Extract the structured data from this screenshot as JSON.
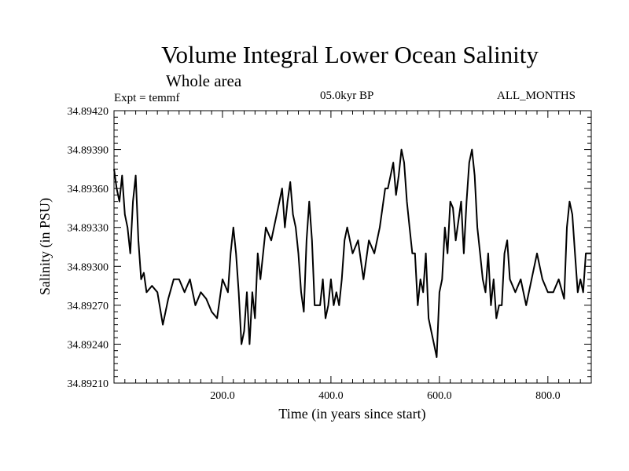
{
  "header": {
    "title": "Volume Integral Lower Ocean Salinity",
    "subtitle": "Whole area",
    "expt_label": "Expt = temmf",
    "period_label": "05.0kyr BP",
    "months_label": "ALL_MONTHS"
  },
  "chart_data": {
    "type": "line",
    "title": "Volume Integral Lower Ocean Salinity",
    "subtitle": "Whole area",
    "xlabel": "Time (in years since start)",
    "ylabel": "Salinity (in PSU)",
    "xlim": [
      0,
      880
    ],
    "ylim": [
      34.8921,
      34.8942
    ],
    "x_ticks": [
      200,
      400,
      600,
      800
    ],
    "x_tick_labels": [
      "200.0",
      "400.0",
      "600.0",
      "800.0"
    ],
    "y_ticks": [
      34.8921,
      34.8924,
      34.8927,
      34.893,
      34.8933,
      34.8936,
      34.8939,
      34.8942
    ],
    "y_tick_labels": [
      "34.89210",
      "34.89240",
      "34.89270",
      "34.89300",
      "34.89330",
      "34.89360",
      "34.89390",
      "34.89420"
    ],
    "grid": false,
    "series": [
      {
        "name": "Salinity",
        "color": "#000000",
        "x": [
          0,
          5,
          10,
          15,
          20,
          25,
          30,
          35,
          40,
          45,
          50,
          55,
          60,
          70,
          80,
          90,
          100,
          110,
          120,
          130,
          140,
          150,
          160,
          170,
          180,
          190,
          200,
          210,
          215,
          220,
          225,
          230,
          235,
          240,
          245,
          250,
          255,
          260,
          265,
          270,
          280,
          290,
          300,
          305,
          310,
          315,
          320,
          325,
          330,
          335,
          340,
          345,
          350,
          355,
          360,
          365,
          370,
          380,
          385,
          390,
          395,
          400,
          405,
          410,
          415,
          420,
          425,
          430,
          440,
          450,
          460,
          470,
          480,
          490,
          500,
          505,
          510,
          515,
          520,
          525,
          530,
          535,
          540,
          545,
          550,
          555,
          560,
          565,
          570,
          575,
          580,
          585,
          590,
          595,
          600,
          605,
          610,
          615,
          620,
          625,
          630,
          640,
          645,
          650,
          655,
          660,
          665,
          670,
          675,
          680,
          685,
          690,
          695,
          700,
          705,
          710,
          715,
          720,
          725,
          730,
          740,
          750,
          760,
          770,
          780,
          790,
          800,
          810,
          820,
          830,
          835,
          840,
          845,
          850,
          855,
          860,
          865,
          870,
          875,
          880
        ],
        "values": [
          34.89375,
          34.8936,
          34.8935,
          34.8937,
          34.8934,
          34.8933,
          34.8931,
          34.8935,
          34.8937,
          34.8932,
          34.8929,
          34.89295,
          34.8928,
          34.89285,
          34.8928,
          34.89255,
          34.89275,
          34.8929,
          34.8929,
          34.8928,
          34.8929,
          34.8927,
          34.8928,
          34.89275,
          34.89265,
          34.8926,
          34.8929,
          34.8928,
          34.8931,
          34.8933,
          34.8931,
          34.8928,
          34.8924,
          34.8925,
          34.8928,
          34.8924,
          34.8928,
          34.8926,
          34.8931,
          34.8929,
          34.8933,
          34.8932,
          34.8934,
          34.8935,
          34.8936,
          34.8933,
          34.8935,
          34.89365,
          34.8934,
          34.8933,
          34.8931,
          34.8928,
          34.89265,
          34.8932,
          34.8935,
          34.8932,
          34.8927,
          34.8927,
          34.8929,
          34.8926,
          34.8927,
          34.8929,
          34.8927,
          34.8928,
          34.8927,
          34.8929,
          34.8932,
          34.8933,
          34.8931,
          34.8932,
          34.8929,
          34.8932,
          34.8931,
          34.8933,
          34.8936,
          34.8936,
          34.8937,
          34.8938,
          34.89355,
          34.8937,
          34.8939,
          34.8938,
          34.8935,
          34.8933,
          34.8931,
          34.8931,
          34.8927,
          34.8929,
          34.8928,
          34.8931,
          34.8926,
          34.8925,
          34.8924,
          34.8923,
          34.8928,
          34.8929,
          34.8933,
          34.8931,
          34.8935,
          34.89345,
          34.8932,
          34.8935,
          34.8931,
          34.8935,
          34.8938,
          34.8939,
          34.8937,
          34.8933,
          34.8931,
          34.8929,
          34.8928,
          34.8931,
          34.8927,
          34.8929,
          34.8926,
          34.8927,
          34.8927,
          34.8931,
          34.8932,
          34.8929,
          34.8928,
          34.8929,
          34.8927,
          34.8929,
          34.8931,
          34.8929,
          34.8928,
          34.8928,
          34.8929,
          34.89275,
          34.8933,
          34.8935,
          34.8934,
          34.8931,
          34.8928,
          34.8929,
          34.8928,
          34.8931,
          34.8931,
          34.8931
        ]
      }
    ]
  }
}
